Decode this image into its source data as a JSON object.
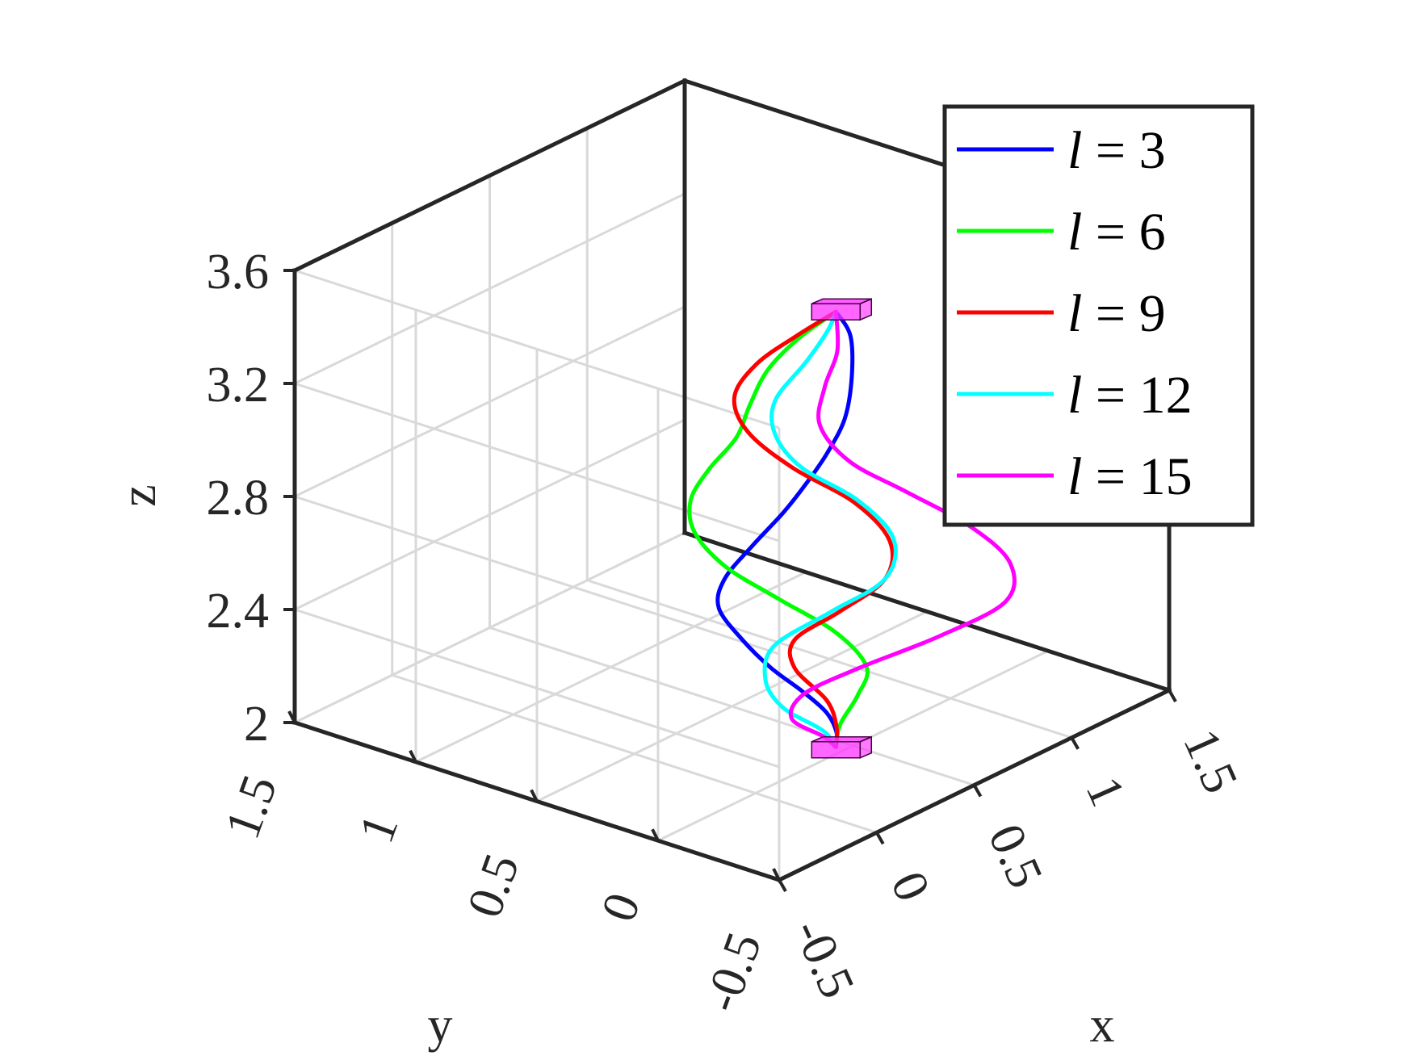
{
  "chart_data": {
    "type": "line",
    "projection": "3d",
    "title": "",
    "xlabel": "x",
    "ylabel": "y",
    "zlabel": "z",
    "xlim": [
      -0.5,
      1.5
    ],
    "ylim": [
      -0.5,
      1.5
    ],
    "zlim": [
      2,
      3.6
    ],
    "x_ticks": [
      "-0.5",
      "0",
      "0.5",
      "1",
      "1.5"
    ],
    "y_ticks": [
      "-0.5",
      "0",
      "0.5",
      "1",
      "1.5"
    ],
    "z_ticks": [
      "2",
      "2.4",
      "2.8",
      "3.2",
      "3.6"
    ],
    "grid": true,
    "legend_position": "top-right",
    "start_marker": {
      "x": 0.35,
      "y": -0.05,
      "z": 2.05,
      "color": "#ff33ff"
    },
    "end_marker": {
      "x": 0.35,
      "y": -0.05,
      "z": 3.6,
      "color": "#ff33ff"
    },
    "series": [
      {
        "name": "3",
        "color": "#0000ff",
        "points": [
          [
            0.35,
            -0.05,
            2.06
          ],
          [
            0.34,
            -0.06,
            2.12
          ],
          [
            0.3,
            -0.05,
            2.2
          ],
          [
            0.24,
            0.0,
            2.28
          ],
          [
            0.18,
            0.08,
            2.36
          ],
          [
            0.12,
            0.15,
            2.46
          ],
          [
            0.06,
            0.2,
            2.58
          ],
          [
            0.04,
            0.16,
            2.7
          ],
          [
            0.06,
            0.06,
            2.84
          ],
          [
            0.08,
            -0.05,
            2.98
          ],
          [
            0.1,
            -0.13,
            3.1
          ],
          [
            0.12,
            -0.2,
            3.22
          ],
          [
            0.16,
            -0.24,
            3.34
          ],
          [
            0.22,
            -0.22,
            3.46
          ],
          [
            0.3,
            -0.15,
            3.56
          ],
          [
            0.35,
            -0.05,
            3.6
          ]
        ]
      },
      {
        "name": "6",
        "color": "#00ff00",
        "points": [
          [
            0.35,
            -0.05,
            2.06
          ],
          [
            0.36,
            -0.06,
            2.14
          ],
          [
            0.4,
            -0.1,
            2.24
          ],
          [
            0.42,
            -0.12,
            2.34
          ],
          [
            0.36,
            -0.04,
            2.46
          ],
          [
            0.24,
            0.1,
            2.58
          ],
          [
            0.12,
            0.22,
            2.7
          ],
          [
            0.06,
            0.3,
            2.82
          ],
          [
            0.04,
            0.3,
            2.94
          ],
          [
            0.06,
            0.24,
            3.06
          ],
          [
            0.1,
            0.16,
            3.18
          ],
          [
            0.12,
            0.12,
            3.3
          ],
          [
            0.16,
            0.08,
            3.42
          ],
          [
            0.24,
            0.02,
            3.52
          ],
          [
            0.35,
            -0.05,
            3.6
          ]
        ]
      },
      {
        "name": "9",
        "color": "#ff0000",
        "points": [
          [
            0.35,
            -0.05,
            2.06
          ],
          [
            0.34,
            -0.06,
            2.14
          ],
          [
            0.34,
            -0.02,
            2.22
          ],
          [
            0.3,
            0.08,
            2.32
          ],
          [
            0.3,
            0.08,
            2.42
          ],
          [
            0.36,
            -0.06,
            2.54
          ],
          [
            0.44,
            -0.18,
            2.66
          ],
          [
            0.44,
            -0.2,
            2.8
          ],
          [
            0.36,
            -0.12,
            2.94
          ],
          [
            0.24,
            0.04,
            3.06
          ],
          [
            0.16,
            0.16,
            3.18
          ],
          [
            0.14,
            0.2,
            3.3
          ],
          [
            0.18,
            0.14,
            3.42
          ],
          [
            0.26,
            0.04,
            3.52
          ],
          [
            0.35,
            -0.05,
            3.6
          ]
        ]
      },
      {
        "name": "12",
        "color": "#00ffff",
        "points": [
          [
            0.35,
            -0.05,
            2.06
          ],
          [
            0.32,
            -0.02,
            2.12
          ],
          [
            0.24,
            0.08,
            2.2
          ],
          [
            0.2,
            0.12,
            2.3
          ],
          [
            0.22,
            0.1,
            2.42
          ],
          [
            0.34,
            -0.04,
            2.54
          ],
          [
            0.44,
            -0.18,
            2.66
          ],
          [
            0.46,
            -0.2,
            2.8
          ],
          [
            0.38,
            -0.12,
            2.94
          ],
          [
            0.26,
            0.02,
            3.06
          ],
          [
            0.2,
            0.08,
            3.18
          ],
          [
            0.2,
            0.08,
            3.3
          ],
          [
            0.26,
            0.0,
            3.44
          ],
          [
            0.32,
            -0.04,
            3.54
          ],
          [
            0.35,
            -0.05,
            3.6
          ]
        ]
      },
      {
        "name": "15",
        "color": "#ff00ff",
        "points": [
          [
            0.35,
            -0.05,
            2.06
          ],
          [
            0.32,
            -0.02,
            2.1
          ],
          [
            0.26,
            0.06,
            2.16
          ],
          [
            0.3,
            0.04,
            2.24
          ],
          [
            0.44,
            -0.08,
            2.32
          ],
          [
            0.62,
            -0.26,
            2.42
          ],
          [
            0.76,
            -0.42,
            2.54
          ],
          [
            0.76,
            -0.44,
            2.68
          ],
          [
            0.66,
            -0.36,
            2.82
          ],
          [
            0.5,
            -0.22,
            2.96
          ],
          [
            0.36,
            -0.1,
            3.08
          ],
          [
            0.28,
            -0.04,
            3.22
          ],
          [
            0.28,
            -0.06,
            3.36
          ],
          [
            0.32,
            -0.08,
            3.48
          ],
          [
            0.35,
            -0.05,
            3.6
          ]
        ]
      }
    ]
  }
}
